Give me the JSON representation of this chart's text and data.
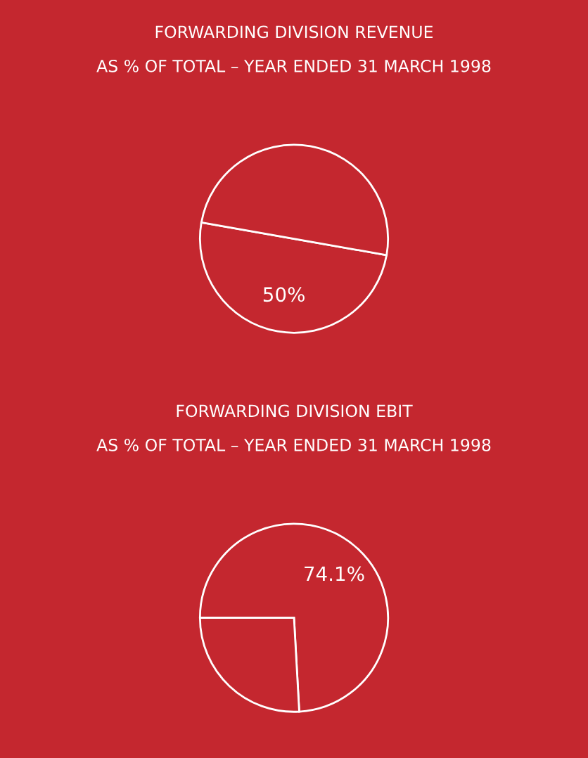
{
  "chart_data": [
    {
      "type": "pie",
      "title": "FORWARDING DIVISION REVENUE",
      "subtitle": "AS % OF TOTAL – YEAR ENDED 31 MARCH 1998",
      "categories": [
        null,
        null
      ],
      "values": [
        50,
        50
      ],
      "colors": [
        "#c4272f",
        "#c4272f"
      ],
      "value_labels": [
        "50%",
        null
      ]
    },
    {
      "type": "pie",
      "title": "FORWARDING DIVISION EBIT",
      "subtitle": "AS % OF TOTAL – YEAR ENDED 31 MARCH 1998",
      "categories": [
        null,
        null
      ],
      "values": [
        74.1,
        25.9
      ],
      "colors": [
        "#c4272f",
        "#c4272f"
      ],
      "value_labels": [
        "74.1%",
        null
      ]
    }
  ]
}
